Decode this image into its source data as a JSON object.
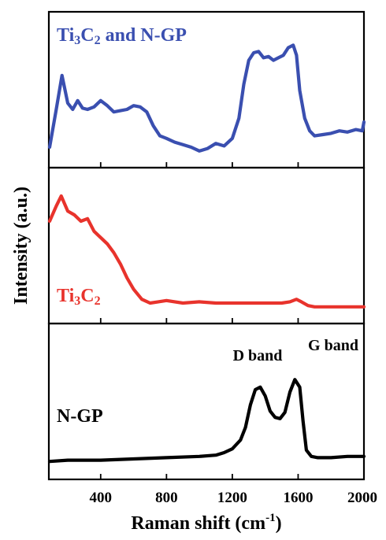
{
  "chart_data": {
    "type": "line",
    "xlabel": "Raman shift (cm",
    "xlabel_sup": "-1",
    "xlabel_end": ")",
    "ylabel": "Intensity (a.u.)",
    "xlim": [
      85,
      2000
    ],
    "xticks": [
      400,
      800,
      1200,
      1600,
      2000
    ],
    "xtick_labels": [
      "400",
      "800",
      "1200",
      "1600",
      "2000"
    ],
    "panels": [
      {
        "label": "Ti",
        "label_sub": "3",
        "label_mid": "C",
        "label_sub2": "2",
        "label_end": " and N-GP",
        "color": "#3a4fb0",
        "ylim": [
          0,
          1
        ],
        "x": [
          90,
          130,
          165,
          200,
          230,
          260,
          290,
          320,
          360,
          400,
          440,
          480,
          520,
          560,
          600,
          640,
          680,
          720,
          760,
          800,
          850,
          900,
          950,
          1000,
          1050,
          1100,
          1150,
          1200,
          1240,
          1270,
          1300,
          1330,
          1360,
          1390,
          1420,
          1450,
          1480,
          1510,
          1540,
          1570,
          1590,
          1610,
          1640,
          1670,
          1700,
          1750,
          1800,
          1850,
          1900,
          1950,
          1990,
          2000
        ],
        "values": [
          0.05,
          0.35,
          0.62,
          0.4,
          0.35,
          0.42,
          0.36,
          0.35,
          0.37,
          0.42,
          0.38,
          0.33,
          0.34,
          0.35,
          0.38,
          0.37,
          0.33,
          0.22,
          0.14,
          0.12,
          0.09,
          0.07,
          0.05,
          0.02,
          0.04,
          0.08,
          0.06,
          0.12,
          0.28,
          0.55,
          0.74,
          0.8,
          0.81,
          0.76,
          0.77,
          0.74,
          0.76,
          0.78,
          0.84,
          0.86,
          0.78,
          0.5,
          0.28,
          0.18,
          0.14,
          0.15,
          0.16,
          0.18,
          0.17,
          0.19,
          0.18,
          0.25
        ]
      },
      {
        "label": "Ti",
        "label_sub": "3",
        "label_mid": "C",
        "label_sub2": "2",
        "label_end": "",
        "color": "#e8332c",
        "ylim": [
          0,
          1
        ],
        "x": [
          90,
          130,
          160,
          200,
          240,
          280,
          320,
          360,
          400,
          440,
          480,
          520,
          560,
          600,
          650,
          700,
          750,
          800,
          900,
          1000,
          1100,
          1200,
          1300,
          1400,
          1500,
          1550,
          1590,
          1620,
          1660,
          1700,
          1800,
          1900,
          2000
        ],
        "values": [
          0.7,
          0.82,
          0.9,
          0.78,
          0.75,
          0.7,
          0.72,
          0.62,
          0.57,
          0.52,
          0.45,
          0.36,
          0.25,
          0.16,
          0.08,
          0.05,
          0.06,
          0.07,
          0.05,
          0.06,
          0.05,
          0.05,
          0.05,
          0.05,
          0.05,
          0.06,
          0.08,
          0.06,
          0.03,
          0.02,
          0.02,
          0.02,
          0.02
        ]
      },
      {
        "label": "N-GP",
        "color": "#000000",
        "ylim": [
          0,
          1
        ],
        "x": [
          90,
          200,
          400,
          600,
          800,
          1000,
          1100,
          1150,
          1200,
          1250,
          1280,
          1310,
          1340,
          1370,
          1400,
          1430,
          1460,
          1490,
          1520,
          1550,
          1580,
          1610,
          1630,
          1650,
          1680,
          1720,
          1800,
          1900,
          2000
        ],
        "values": [
          0.03,
          0.04,
          0.04,
          0.05,
          0.06,
          0.07,
          0.08,
          0.1,
          0.13,
          0.2,
          0.3,
          0.48,
          0.6,
          0.62,
          0.55,
          0.43,
          0.38,
          0.37,
          0.42,
          0.58,
          0.68,
          0.62,
          0.35,
          0.12,
          0.07,
          0.06,
          0.06,
          0.07,
          0.07
        ]
      }
    ],
    "annotations": [
      {
        "text": "D band",
        "x": 1350,
        "y": 0.68
      },
      {
        "text": "G band",
        "x": 1640,
        "y": 0.78
      }
    ]
  }
}
